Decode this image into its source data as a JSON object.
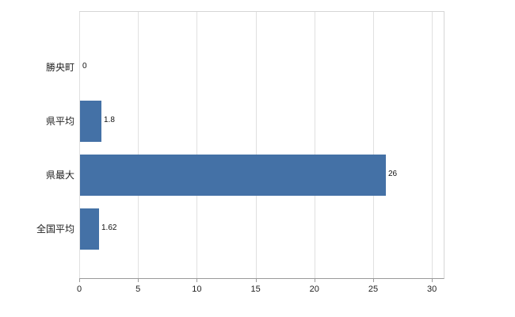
{
  "chart_data": {
    "type": "bar",
    "orientation": "horizontal",
    "title": "",
    "categories": [
      "勝央町",
      "県平均",
      "県最大",
      "全国平均"
    ],
    "values": [
      0,
      1.8,
      26,
      1.62
    ],
    "value_labels": [
      "0",
      "1.8",
      "26",
      "1.62"
    ],
    "x_ticks": [
      0,
      5,
      10,
      15,
      20,
      25,
      30
    ],
    "x_tick_labels": [
      "0",
      "5",
      "10",
      "15",
      "20",
      "25",
      "30"
    ],
    "xlim": [
      0,
      31
    ],
    "grid": true,
    "legend": "none",
    "colors": {
      "bar": "#4471a6",
      "grid": "#e0e0e0",
      "axis": "#9a9a9a",
      "plot_border": "#d6d6d6",
      "text": "#222222"
    }
  }
}
